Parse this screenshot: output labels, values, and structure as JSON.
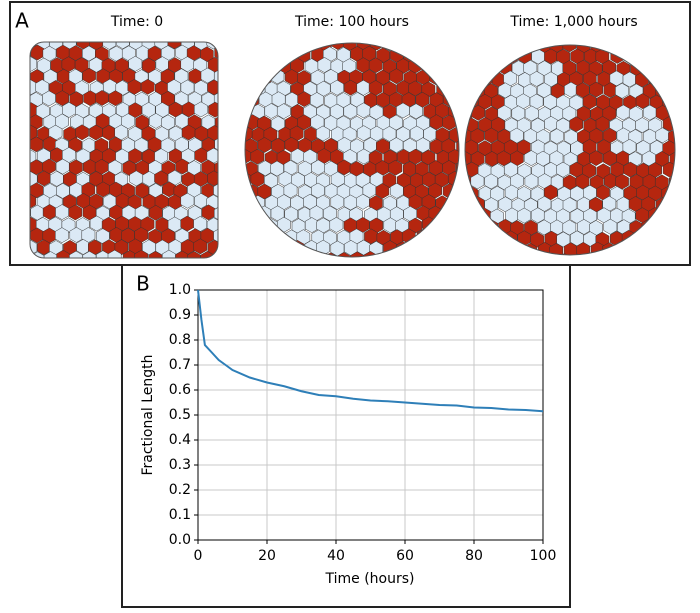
{
  "panel_a": {
    "label": "A",
    "titles": [
      "Time: 0",
      "Time: 100 hours",
      "Time: 1,000 hours"
    ]
  },
  "chart_data": {
    "type": "line",
    "panel_label": "B",
    "xlabel": "Time (hours)",
    "ylabel": "Fractional Length",
    "x": [
      0,
      1,
      2,
      4,
      6,
      8,
      10,
      15,
      20,
      25,
      30,
      35,
      40,
      45,
      50,
      55,
      60,
      65,
      70,
      75,
      80,
      85,
      90,
      95,
      100
    ],
    "values": [
      1.0,
      0.88,
      0.78,
      0.75,
      0.72,
      0.7,
      0.68,
      0.65,
      0.63,
      0.615,
      0.595,
      0.58,
      0.575,
      0.565,
      0.558,
      0.555,
      0.55,
      0.545,
      0.54,
      0.538,
      0.53,
      0.528,
      0.522,
      0.52,
      0.515
    ],
    "color": "#2e7fb8",
    "xlim": [
      0,
      100
    ],
    "xticks": [
      0,
      20,
      40,
      60,
      80,
      100
    ],
    "ylim": [
      0,
      1
    ],
    "yticks": [
      {
        "value": 0,
        "label": "0.0"
      },
      0.1,
      0.2,
      0.3,
      0.4,
      0.5,
      0.6,
      0.7,
      0.8,
      0.9,
      {
        "value": 1,
        "label": "1.0"
      }
    ],
    "grid": true
  }
}
